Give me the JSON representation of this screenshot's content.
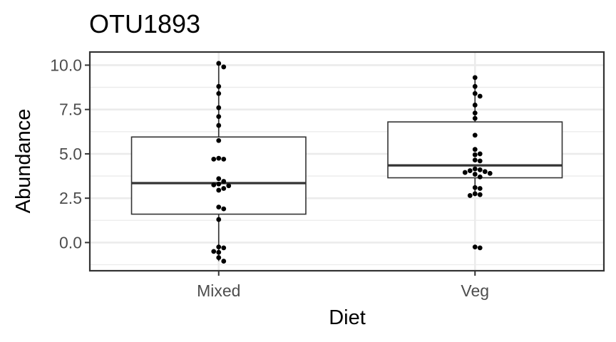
{
  "chart_data": {
    "type": "box",
    "title": "OTU1893",
    "xlabel": "Diet",
    "ylabel": "Abundance",
    "ylim": [
      -1.55,
      10.7
    ],
    "y_ticks": [
      0,
      2.5,
      5,
      7.5,
      10
    ],
    "y_tick_labels": [
      "0.0",
      "2.5",
      "5.0",
      "7.5",
      "10.0"
    ],
    "categories": [
      "Mixed",
      "Veg"
    ],
    "groups": [
      {
        "name": "Mixed",
        "q1": 1.6,
        "median": 3.35,
        "q3": 5.95,
        "whisker_low": -1.05,
        "whisker_high": 10.1,
        "points": [
          10.1,
          9.9,
          8.8,
          8.4,
          7.6,
          7.1,
          6.6,
          5.75,
          4.75,
          4.7,
          4.7,
          3.6,
          3.45,
          3.3,
          3.25,
          3.2,
          3.05,
          2.95,
          2.0,
          1.9,
          1.3,
          -0.25,
          -0.3,
          -0.5,
          -0.55,
          -0.85,
          -1.05
        ]
      },
      {
        "name": "Veg",
        "q1": 3.65,
        "median": 4.35,
        "q3": 6.8,
        "whisker_low": 2.65,
        "whisker_high": 9.3,
        "points": [
          9.3,
          8.8,
          8.4,
          8.25,
          7.75,
          7.3,
          7.0,
          6.05,
          5.25,
          5.0,
          4.95,
          4.65,
          4.6,
          4.15,
          4.1,
          4.05,
          4.0,
          3.95,
          3.9,
          3.85,
          3.7,
          3.1,
          3.05,
          2.75,
          2.7,
          2.65,
          -0.25,
          -0.3
        ]
      }
    ],
    "colors": {
      "background": "#ffffff",
      "grid": "#ebebeb",
      "panel_border": "#333333",
      "box_stroke": "#333333",
      "point": "#000000",
      "axis_text": "#4d4d4d",
      "title_text": "#000000"
    }
  }
}
